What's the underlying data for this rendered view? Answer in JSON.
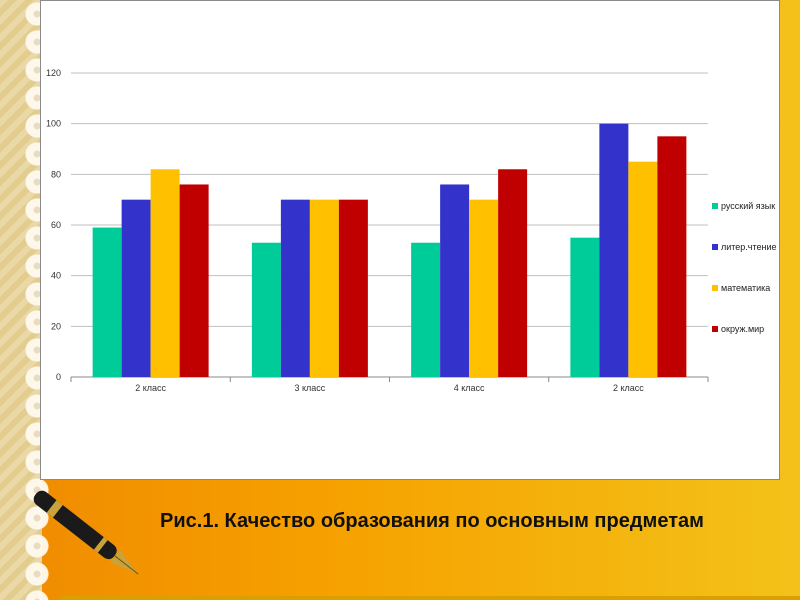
{
  "caption": "Рис.1. Качество образования по основным предметам",
  "chart_data": {
    "type": "bar",
    "categories": [
      "2 класс",
      "3 класс",
      "4 класс",
      "2 класс"
    ],
    "series": [
      {
        "name": "русский язык",
        "color": "#00cc99",
        "values": [
          59,
          53,
          53,
          55
        ]
      },
      {
        "name": "литер.чтение",
        "color": "#3333cc",
        "values": [
          70,
          70,
          76,
          100
        ]
      },
      {
        "name": "математика",
        "color": "#ffc000",
        "values": [
          82,
          70,
          70,
          85
        ]
      },
      {
        "name": "окруж.мир",
        "color": "#c00000",
        "values": [
          76,
          70,
          82,
          95
        ]
      }
    ],
    "yticks": [
      "0",
      "20",
      "40",
      "60",
      "80",
      "100",
      "120"
    ],
    "ylim": [
      0,
      120
    ],
    "grid": true,
    "legend": "right"
  }
}
